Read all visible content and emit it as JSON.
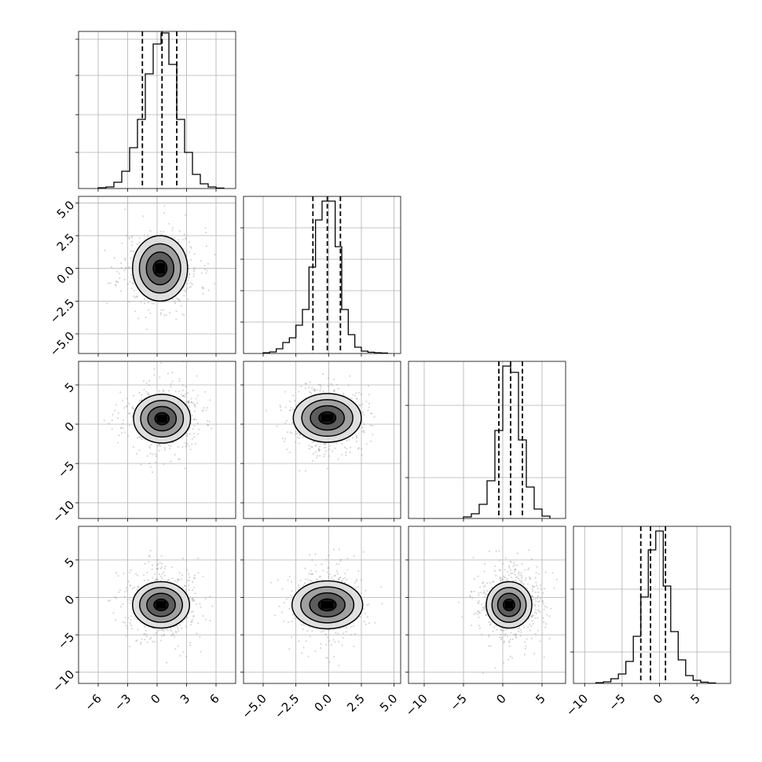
{
  "chart_data": {
    "type": "corner",
    "n_params": 4,
    "grid": true,
    "params": [
      {
        "range": [
          -8,
          8
        ],
        "ticks": [
          -6,
          -3,
          0,
          3,
          6
        ],
        "tick_labels": [
          "−6",
          "−3",
          "0",
          "3",
          "6"
        ],
        "quantiles": [
          -1.5,
          0.5,
          2.0
        ],
        "hist_edges": [
          -6.0,
          -5.2,
          -4.4,
          -3.6,
          -2.8,
          -2.0,
          -1.2,
          -0.4,
          0.4,
          1.2,
          2.0,
          2.8,
          3.6,
          4.4,
          5.2,
          6.0,
          6.8
        ],
        "hist_counts": [
          0.005,
          0.01,
          0.04,
          0.11,
          0.26,
          0.44,
          0.73,
          0.92,
          0.99,
          0.79,
          0.44,
          0.23,
          0.09,
          0.03,
          0.01,
          0.003
        ],
        "hist_yticks": [
          0.23,
          0.47,
          0.72,
          0.95
        ]
      },
      {
        "range": [
          -6.5,
          5.5
        ],
        "ticks": [
          -5.0,
          -2.5,
          0.0,
          2.5,
          5.0
        ],
        "tick_labels": [
          "−5.0",
          "−2.5",
          "0.0",
          "2.5",
          "5.0"
        ],
        "quantiles": [
          -1.2,
          -0.1,
          0.9
        ],
        "hist_edges": [
          -5.0,
          -4.5,
          -4.0,
          -3.5,
          -3.0,
          -2.5,
          -2.0,
          -1.5,
          -1.0,
          -0.5,
          0.0,
          0.5,
          1.0,
          1.5,
          2.0,
          2.5,
          3.0,
          3.5,
          4.0,
          4.5
        ],
        "hist_counts": [
          0.005,
          0.01,
          0.03,
          0.07,
          0.1,
          0.18,
          0.28,
          0.55,
          0.85,
          0.97,
          0.97,
          0.68,
          0.28,
          0.12,
          0.04,
          0.015,
          0.008,
          0.005,
          0.003
        ],
        "hist_yticks": [
          0.2,
          0.4,
          0.6,
          0.8
        ]
      },
      {
        "range": [
          -12,
          8
        ],
        "ticks": [
          -10,
          -5,
          0,
          5
        ],
        "tick_labels": [
          "−10",
          "−5",
          "0",
          "5"
        ],
        "quantiles": [
          -0.5,
          1.0,
          2.5
        ],
        "hist_edges": [
          -5.0,
          -4.0,
          -3.0,
          -2.0,
          -1.0,
          0.0,
          1.0,
          2.0,
          3.0,
          4.0,
          5.0,
          6.0
        ],
        "hist_counts": [
          0.01,
          0.03,
          0.09,
          0.24,
          0.56,
          0.97,
          0.93,
          0.5,
          0.2,
          0.06,
          0.015
        ],
        "hist_yticks": [
          0.26,
          0.72
        ]
      },
      {
        "range": [
          -11.5,
          9.5
        ],
        "ticks": [
          -10,
          -5,
          0,
          5
        ],
        "tick_labels": [
          "−10",
          "−5",
          "0",
          "5"
        ],
        "quantiles": [
          -2.5,
          -1.2,
          0.8
        ],
        "hist_edges": [
          -8.5,
          -7.5,
          -6.5,
          -5.5,
          -4.5,
          -3.5,
          -2.5,
          -1.5,
          -0.5,
          0.5,
          1.5,
          2.5,
          3.5,
          4.5,
          5.5,
          6.5,
          7.5
        ],
        "hist_counts": [
          0.005,
          0.01,
          0.03,
          0.06,
          0.14,
          0.3,
          0.55,
          0.85,
          0.97,
          0.62,
          0.33,
          0.15,
          0.05,
          0.02,
          0.008,
          0.003
        ],
        "hist_yticks": [
          0.2,
          0.6
        ]
      }
    ],
    "pairs": [
      {
        "row": 1,
        "col": 0,
        "center": [
          0.3,
          0.0
        ],
        "sigma": [
          1.4,
          1.25
        ],
        "point_spread": [
          2.0,
          1.55
        ],
        "n_points": 520,
        "seed": 11
      },
      {
        "row": 2,
        "col": 0,
        "center": [
          0.5,
          0.7
        ],
        "sigma": [
          1.45,
          1.55
        ],
        "point_spread": [
          2.0,
          2.3
        ],
        "n_points": 520,
        "seed": 23
      },
      {
        "row": 2,
        "col": 1,
        "center": [
          -0.1,
          0.8
        ],
        "sigma": [
          1.3,
          1.55
        ],
        "point_spread": [
          1.5,
          2.3
        ],
        "n_points": 520,
        "seed": 37
      },
      {
        "row": 3,
        "col": 0,
        "center": [
          0.4,
          -1.0
        ],
        "sigma": [
          1.45,
          1.55
        ],
        "point_spread": [
          2.0,
          2.7
        ],
        "n_points": 520,
        "seed": 41
      },
      {
        "row": 3,
        "col": 1,
        "center": [
          -0.1,
          -1.0
        ],
        "sigma": [
          1.35,
          1.6
        ],
        "point_spread": [
          1.5,
          2.7
        ],
        "n_points": 520,
        "seed": 53
      },
      {
        "row": 3,
        "col": 2,
        "center": [
          0.8,
          -1.0
        ],
        "sigma": [
          1.45,
          1.55
        ],
        "point_spread": [
          2.2,
          2.7
        ],
        "n_points": 520,
        "seed": 67
      }
    ],
    "contour_levels": [
      0.5,
      1.0,
      1.5,
      2.0
    ],
    "shade_levels": [
      {
        "level": 0.5,
        "color": "#111111"
      },
      {
        "level": 1.0,
        "color": "#555555"
      },
      {
        "level": 1.5,
        "color": "#999999"
      },
      {
        "level": 2.0,
        "color": "#dddddd"
      }
    ],
    "colors": {
      "line": "#000000",
      "grid": "#b0b0b0",
      "points": "#8f8f8f"
    }
  }
}
